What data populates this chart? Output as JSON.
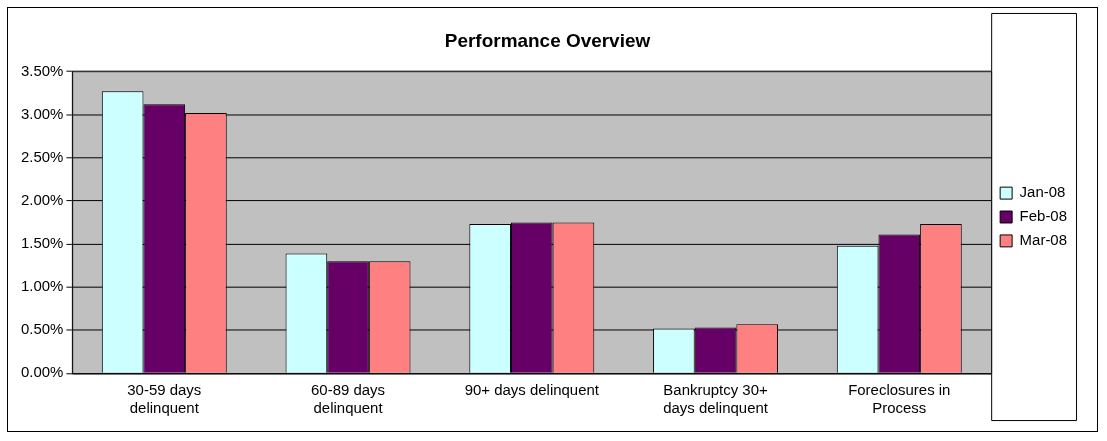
{
  "chart_data": {
    "type": "bar",
    "title": "Performance Overview",
    "categories": [
      "30-59 days delinquent",
      "60-89 days delinquent",
      "90+ days delinquent",
      "Bankruptcy 30+ days delinquent",
      "Foreclosures in Process"
    ],
    "series": [
      {
        "name": "Jan-08",
        "color": "#ccffff",
        "values": [
          3.27,
          1.39,
          1.73,
          0.52,
          1.48
        ]
      },
      {
        "name": "Feb-08",
        "color": "#660066",
        "values": [
          3.12,
          1.3,
          1.75,
          0.53,
          1.61
        ]
      },
      {
        "name": "Mar-08",
        "color": "#ff8080",
        "values": [
          3.02,
          1.3,
          1.75,
          0.57,
          1.73
        ]
      }
    ],
    "ylim": [
      0,
      3.5
    ],
    "yticks": [
      {
        "value": 0,
        "label": "0.00%"
      },
      {
        "value": 0.5,
        "label": "0.50%"
      },
      {
        "value": 1,
        "label": "1.00%"
      },
      {
        "value": 1.5,
        "label": "1.50%"
      },
      {
        "value": 2,
        "label": "2.00%"
      },
      {
        "value": 2.5,
        "label": "2.50%"
      },
      {
        "value": 3,
        "label": "3.00%"
      },
      {
        "value": 3.5,
        "label": "3.50%"
      }
    ],
    "grid": "y",
    "legend": "right"
  }
}
